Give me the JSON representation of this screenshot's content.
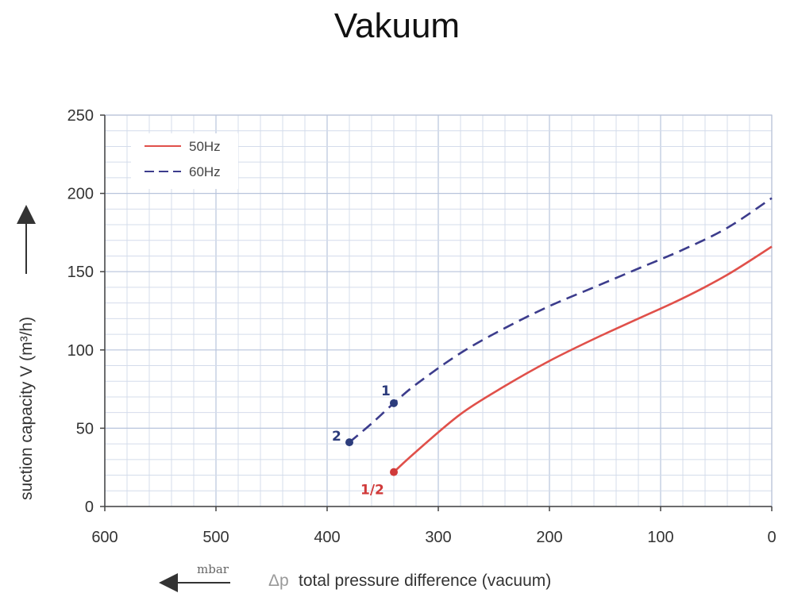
{
  "chart_data": {
    "type": "line",
    "title": "Vakuum",
    "xlabel": "total pressure difference (vacuum)",
    "xlabel_symbol": "Δp",
    "x_unit": "mbar",
    "ylabel": "suction capacity V (m³/h)",
    "xlim": [
      600,
      0
    ],
    "ylim": [
      0,
      250
    ],
    "x_ticks": [
      600,
      500,
      400,
      300,
      200,
      100,
      0
    ],
    "y_ticks": [
      0,
      50,
      100,
      150,
      200,
      250
    ],
    "grid": true,
    "legend_position": "top-left",
    "series": [
      {
        "name": "50Hz",
        "color": "#e0504a",
        "style": "solid",
        "x": [
          340,
          320,
          280,
          240,
          200,
          160,
          120,
          80,
          40,
          0
        ],
        "y": [
          22,
          35,
          59,
          77,
          93,
          107,
          120,
          133,
          148,
          166
        ]
      },
      {
        "name": "60Hz",
        "color": "#3c3c8c",
        "style": "dashed",
        "x": [
          380,
          360,
          340,
          320,
          280,
          240,
          200,
          160,
          120,
          80,
          40,
          0
        ],
        "y": [
          41,
          53,
          66,
          78,
          98,
          114,
          128,
          140,
          152,
          164,
          178,
          197
        ]
      }
    ],
    "points": [
      {
        "label": "1",
        "x": 340,
        "y": 66,
        "color": "#2c3c7c"
      },
      {
        "label": "2",
        "x": 380,
        "y": 41,
        "color": "#2c3c7c"
      },
      {
        "label": "1/2",
        "x": 340,
        "y": 22,
        "color": "#d03a3a"
      }
    ]
  }
}
